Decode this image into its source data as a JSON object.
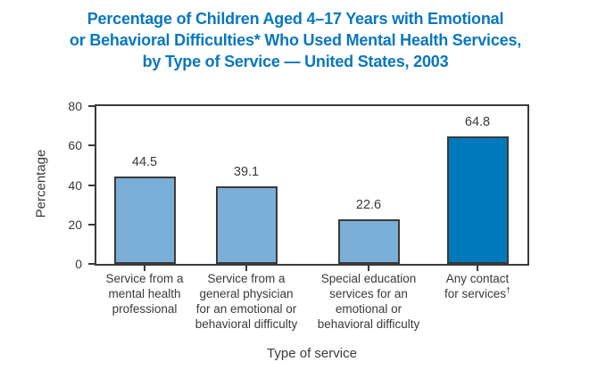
{
  "title": {
    "lines": [
      "Percentage of Children Aged 4–17 Years with Emotional",
      "or Behavioral Difficulties* Who Used Mental Health Services,",
      "by Type of Service — United States, 2003"
    ],
    "color": "#0877BE"
  },
  "chart_data": {
    "type": "bar",
    "title": "Percentage of Children Aged 4–17 Years with Emotional or Behavioral Difficulties* Who Used Mental Health Services, by Type of Service — United States, 2003",
    "xlabel": "Type of service",
    "ylabel": "Percentage",
    "ylim": [
      0,
      80
    ],
    "yticks": [
      0,
      20,
      40,
      60,
      80
    ],
    "grid": false,
    "legend_position": "none",
    "categories": [
      "Service from a mental health professional",
      "Service from a general physician for an emotional or behavioral difficulty",
      "Special education services for an emotional or behavioral difficulty",
      "Any contact for services†"
    ],
    "values": [
      44.5,
      39.1,
      22.6,
      64.8
    ],
    "bars": [
      {
        "label_lines": [
          "Service from a",
          "mental health",
          "professional"
        ],
        "value": "44.5",
        "fill": "#7CAFD8"
      },
      {
        "label_lines": [
          "Service from a",
          "general physician",
          "for an emotional or",
          "behavioral difficulty"
        ],
        "value": "39.1",
        "fill": "#7CAFD8"
      },
      {
        "label_lines": [
          "Special education",
          "services for an",
          "emotional or",
          "behavioral difficulty"
        ],
        "value": "22.6",
        "fill": "#7CAFD8"
      },
      {
        "label_lines": [
          "Any contact",
          "for services†"
        ],
        "value": "64.8",
        "fill": "#0079BD"
      }
    ],
    "colors": {
      "bar_light": "#7CAFD8",
      "bar_dark": "#0079BD",
      "axis": "#3a3a3a"
    }
  }
}
